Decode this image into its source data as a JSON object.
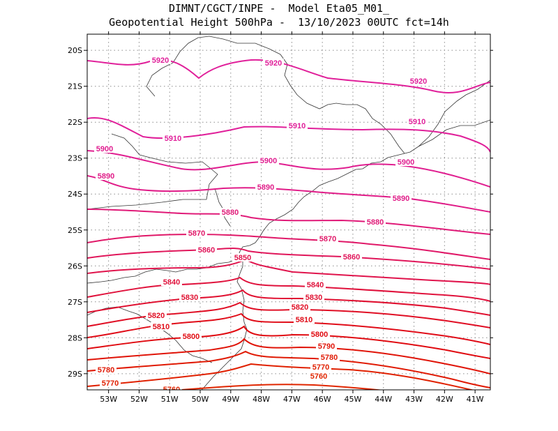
{
  "title": {
    "line1": "DIMNT/CGCT/INPE -  Model Eta05_M01_",
    "line2": "Geopotential Height 500hPa -  13/10/2023 00UTC fct=14h"
  },
  "map": {
    "lon_range": [
      -53.7,
      -40.5
    ],
    "lat_range": [
      -29.45,
      -19.55
    ],
    "x_ticks": [
      "53W",
      "52W",
      "51W",
      "50W",
      "49W",
      "48W",
      "47W",
      "46W",
      "45W",
      "44W",
      "43W",
      "42W",
      "41W"
    ],
    "y_ticks": [
      "20S",
      "21S",
      "22S",
      "23S",
      "24S",
      "25S",
      "26S",
      "27S",
      "28S",
      "29S"
    ],
    "grid": "dotted",
    "features": [
      "coastline",
      "state-borders"
    ]
  },
  "contours": [
    {
      "value": 5920,
      "color": "#e0209a",
      "labels": [
        "5920",
        "5920",
        "5920"
      ]
    },
    {
      "value": 5910,
      "color": "#e0209a",
      "labels": [
        "5910",
        "5910",
        "5910"
      ]
    },
    {
      "value": 5900,
      "color": "#e01e90",
      "labels": [
        "5900",
        "5900",
        "5900"
      ]
    },
    {
      "value": 5890,
      "color": "#e01c88",
      "labels": [
        "5890",
        "5890",
        "5890"
      ]
    },
    {
      "value": 5880,
      "color": "#e01a78",
      "labels": [
        "5880",
        "5880"
      ]
    },
    {
      "value": 5870,
      "color": "#e01868",
      "labels": [
        "5870",
        "5870"
      ]
    },
    {
      "value": 5860,
      "color": "#e0165a",
      "labels": [
        "5860",
        "5860"
      ]
    },
    {
      "value": 5850,
      "color": "#e0144c",
      "labels": [
        "5850"
      ]
    },
    {
      "value": 5840,
      "color": "#e0123c",
      "labels": [
        "5840",
        "5840"
      ]
    },
    {
      "value": 5830,
      "color": "#e01030",
      "labels": [
        "5830",
        "5830"
      ]
    },
    {
      "value": 5820,
      "color": "#e00e24",
      "labels": [
        "5820",
        "5820"
      ]
    },
    {
      "value": 5810,
      "color": "#e00c18",
      "labels": [
        "5810",
        "5810"
      ]
    },
    {
      "value": 5800,
      "color": "#e00a10",
      "labels": [
        "5800",
        "5800"
      ]
    },
    {
      "value": 5790,
      "color": "#e01408",
      "labels": [
        "5790"
      ]
    },
    {
      "value": 5780,
      "color": "#e01a04",
      "labels": [
        "5780",
        "5780"
      ]
    },
    {
      "value": 5770,
      "color": "#e02000",
      "labels": [
        "5770",
        "5770"
      ]
    },
    {
      "value": 5760,
      "color": "#e02600",
      "labels": [
        "5760",
        "5760"
      ]
    }
  ]
}
